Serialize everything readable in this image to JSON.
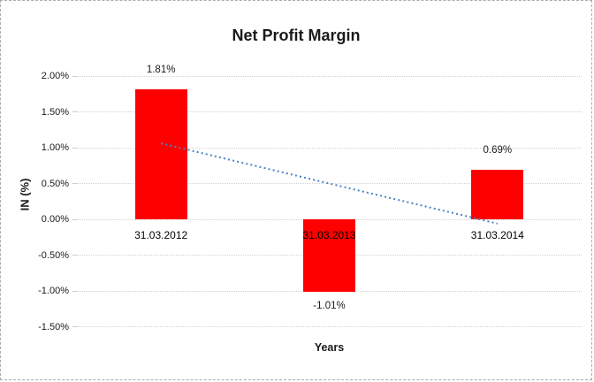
{
  "frame": {
    "border_color": "#ababab",
    "background": "#ffffff"
  },
  "chart_data": {
    "type": "bar",
    "title": "Net Profit Margin",
    "xlabel": "Years",
    "ylabel": "IN (%)",
    "categories": [
      "31.03.2012",
      "31.03.2013",
      "31.03.2014"
    ],
    "values": [
      1.81,
      -1.01,
      0.69
    ],
    "data_labels": [
      "1.81%",
      "-1.01%",
      "0.69%"
    ],
    "ytick_labels": [
      "2.00%",
      "1.50%",
      "1.00%",
      "0.50%",
      "0.00%",
      "-0.50%",
      "-1.00%",
      "-1.50%"
    ],
    "ytick_values": [
      2.0,
      1.5,
      1.0,
      0.5,
      0.0,
      -0.5,
      -1.0,
      -1.5
    ],
    "ylim": [
      -1.5,
      2.0
    ],
    "grid": true,
    "legend": "none",
    "bar_color": "#ff0000",
    "gridline_color": "#d2d2d2",
    "text_color": "#1a1a1a",
    "trendline": {
      "type": "linear",
      "style": "dotted",
      "color": "#4a82c6",
      "start_value": 1.06,
      "end_value": -0.06
    }
  }
}
